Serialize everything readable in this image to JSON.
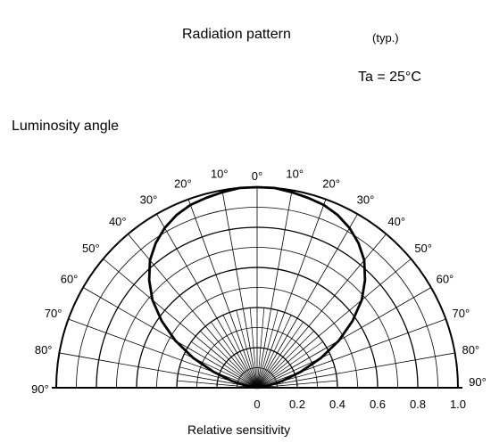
{
  "header": {
    "title": "Radiation pattern",
    "title_note": "(typ.)",
    "condition": "Ta = 25°C"
  },
  "chart_data": {
    "type": "polar",
    "ylabel": "Luminosity angle",
    "xlabel": "Relative sensitivity",
    "radial_ticks": [
      "0",
      "0.2",
      "0.4",
      "0.6",
      "0.8",
      "1.0"
    ],
    "radial_values": [
      0,
      0.2,
      0.4,
      0.6,
      0.8,
      1.0
    ],
    "angle_ticks_left": [
      "10°",
      "20°",
      "30°",
      "40°",
      "50°",
      "60°",
      "70°",
      "80°",
      "90°"
    ],
    "angle_ticks_right": [
      "10°",
      "20°",
      "30°",
      "40°",
      "50°",
      "60°",
      "70°",
      "80°",
      "90°"
    ],
    "angle_tick_values": [
      10,
      20,
      30,
      40,
      50,
      60,
      70,
      80,
      90
    ],
    "center_tick": "0°",
    "rlim": [
      0,
      1.0
    ],
    "angle_range_deg": [
      -90,
      90
    ],
    "grid": true,
    "series": [
      {
        "angles_deg": [
          -90,
          -80,
          -75,
          -70,
          -65,
          -60,
          -55,
          -50,
          -45,
          -40,
          -35,
          -30,
          -25,
          -20,
          -15,
          -10,
          -5,
          0,
          5,
          10,
          15,
          20,
          25,
          30,
          35,
          40,
          45,
          50,
          55,
          60,
          65,
          70,
          75,
          80,
          90
        ],
        "values": [
          0.0,
          0.05,
          0.13,
          0.23,
          0.35,
          0.47,
          0.58,
          0.68,
          0.76,
          0.83,
          0.88,
          0.92,
          0.95,
          0.97,
          0.98,
          0.99,
          1.0,
          1.0,
          1.0,
          0.99,
          0.98,
          0.97,
          0.95,
          0.92,
          0.88,
          0.83,
          0.76,
          0.68,
          0.58,
          0.47,
          0.35,
          0.23,
          0.13,
          0.05,
          0.0
        ]
      }
    ]
  }
}
